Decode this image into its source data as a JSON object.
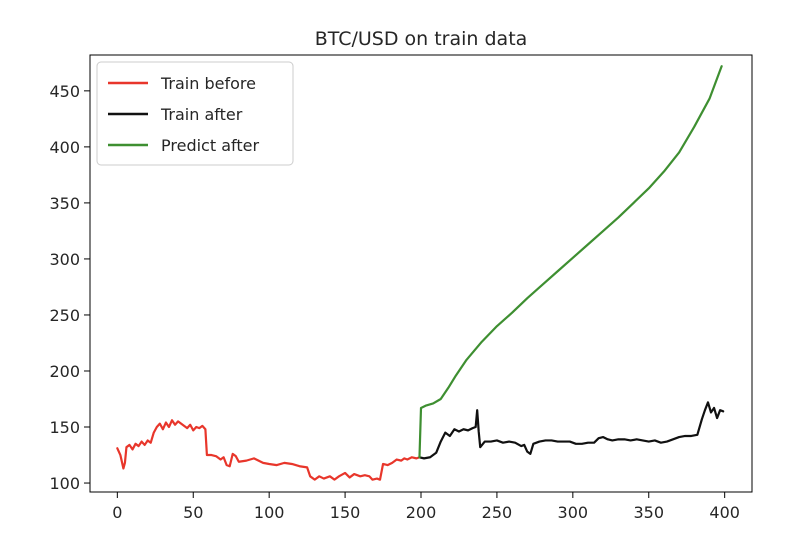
{
  "chart_data": {
    "type": "line",
    "title": "BTC/USD on train data",
    "xlabel": "",
    "ylabel": "",
    "xlim": [
      -18,
      418
    ],
    "ylim": [
      92,
      482
    ],
    "x_ticks": [
      0,
      50,
      100,
      150,
      200,
      250,
      300,
      350,
      400
    ],
    "y_ticks": [
      100,
      150,
      200,
      250,
      300,
      350,
      400,
      450
    ],
    "legend_position": "top-left",
    "grid": false,
    "series": [
      {
        "name": "Train before",
        "color": "#e8362b",
        "points": [
          [
            0,
            131
          ],
          [
            2,
            125
          ],
          [
            4,
            113
          ],
          [
            5,
            118
          ],
          [
            6,
            132
          ],
          [
            8,
            134
          ],
          [
            10,
            130
          ],
          [
            12,
            135
          ],
          [
            14,
            133
          ],
          [
            16,
            137
          ],
          [
            18,
            134
          ],
          [
            20,
            138
          ],
          [
            22,
            136
          ],
          [
            24,
            145
          ],
          [
            26,
            150
          ],
          [
            28,
            153
          ],
          [
            30,
            148
          ],
          [
            32,
            154
          ],
          [
            34,
            150
          ],
          [
            36,
            156
          ],
          [
            38,
            152
          ],
          [
            40,
            155
          ],
          [
            42,
            153
          ],
          [
            44,
            151
          ],
          [
            46,
            149
          ],
          [
            48,
            152
          ],
          [
            50,
            147
          ],
          [
            52,
            150
          ],
          [
            54,
            149
          ],
          [
            56,
            151
          ],
          [
            58,
            148
          ],
          [
            59,
            125
          ],
          [
            62,
            125
          ],
          [
            65,
            124
          ],
          [
            68,
            121
          ],
          [
            70,
            123
          ],
          [
            72,
            116
          ],
          [
            74,
            115
          ],
          [
            76,
            126
          ],
          [
            78,
            124
          ],
          [
            80,
            119
          ],
          [
            85,
            120
          ],
          [
            90,
            122
          ],
          [
            93,
            120
          ],
          [
            96,
            118
          ],
          [
            100,
            117
          ],
          [
            105,
            116
          ],
          [
            110,
            118
          ],
          [
            115,
            117
          ],
          [
            120,
            115
          ],
          [
            125,
            114
          ],
          [
            127,
            106
          ],
          [
            130,
            103
          ],
          [
            133,
            106
          ],
          [
            136,
            104
          ],
          [
            140,
            106
          ],
          [
            143,
            103
          ],
          [
            146,
            106
          ],
          [
            150,
            109
          ],
          [
            153,
            105
          ],
          [
            156,
            108
          ],
          [
            160,
            106
          ],
          [
            163,
            107
          ],
          [
            166,
            106
          ],
          [
            168,
            103
          ],
          [
            171,
            104
          ],
          [
            173,
            103
          ],
          [
            175,
            117
          ],
          [
            178,
            116
          ],
          [
            181,
            118
          ],
          [
            184,
            121
          ],
          [
            187,
            120
          ],
          [
            189,
            122
          ],
          [
            191,
            121
          ],
          [
            194,
            123
          ],
          [
            197,
            122
          ],
          [
            199,
            123
          ]
        ]
      },
      {
        "name": "Train after",
        "color": "#111111",
        "points": [
          [
            199,
            123
          ],
          [
            202,
            122
          ],
          [
            206,
            123
          ],
          [
            210,
            127
          ],
          [
            213,
            137
          ],
          [
            216,
            145
          ],
          [
            219,
            142
          ],
          [
            222,
            148
          ],
          [
            225,
            146
          ],
          [
            228,
            148
          ],
          [
            231,
            147
          ],
          [
            234,
            149
          ],
          [
            236,
            150
          ],
          [
            237,
            165
          ],
          [
            238,
            146
          ],
          [
            239,
            132
          ],
          [
            242,
            137
          ],
          [
            246,
            137
          ],
          [
            250,
            138
          ],
          [
            254,
            136
          ],
          [
            258,
            137
          ],
          [
            262,
            136
          ],
          [
            266,
            133
          ],
          [
            268,
            134
          ],
          [
            270,
            128
          ],
          [
            272,
            126
          ],
          [
            274,
            135
          ],
          [
            278,
            137
          ],
          [
            282,
            138
          ],
          [
            286,
            138
          ],
          [
            290,
            137
          ],
          [
            294,
            137
          ],
          [
            298,
            137
          ],
          [
            302,
            135
          ],
          [
            306,
            135
          ],
          [
            310,
            136
          ],
          [
            314,
            136
          ],
          [
            317,
            140
          ],
          [
            320,
            141
          ],
          [
            323,
            139
          ],
          [
            326,
            138
          ],
          [
            330,
            139
          ],
          [
            334,
            139
          ],
          [
            338,
            138
          ],
          [
            342,
            139
          ],
          [
            346,
            138
          ],
          [
            350,
            137
          ],
          [
            354,
            138
          ],
          [
            358,
            136
          ],
          [
            362,
            137
          ],
          [
            366,
            139
          ],
          [
            370,
            141
          ],
          [
            374,
            142
          ],
          [
            378,
            142
          ],
          [
            382,
            143
          ],
          [
            385,
            157
          ],
          [
            387,
            165
          ],
          [
            389,
            172
          ],
          [
            391,
            163
          ],
          [
            393,
            167
          ],
          [
            395,
            158
          ],
          [
            397,
            165
          ],
          [
            399,
            164
          ]
        ]
      },
      {
        "name": "Predict after",
        "color": "#3e8f31",
        "points": [
          [
            199,
            123
          ],
          [
            200,
            167
          ],
          [
            203,
            169
          ],
          [
            208,
            171
          ],
          [
            213,
            175
          ],
          [
            218,
            185
          ],
          [
            223,
            196
          ],
          [
            230,
            210
          ],
          [
            240,
            226
          ],
          [
            250,
            240
          ],
          [
            260,
            252
          ],
          [
            270,
            265
          ],
          [
            280,
            277
          ],
          [
            290,
            289
          ],
          [
            300,
            301
          ],
          [
            310,
            313
          ],
          [
            320,
            325
          ],
          [
            330,
            337
          ],
          [
            340,
            350
          ],
          [
            350,
            363
          ],
          [
            360,
            378
          ],
          [
            370,
            395
          ],
          [
            380,
            418
          ],
          [
            390,
            443
          ],
          [
            398,
            472
          ]
        ]
      }
    ]
  }
}
